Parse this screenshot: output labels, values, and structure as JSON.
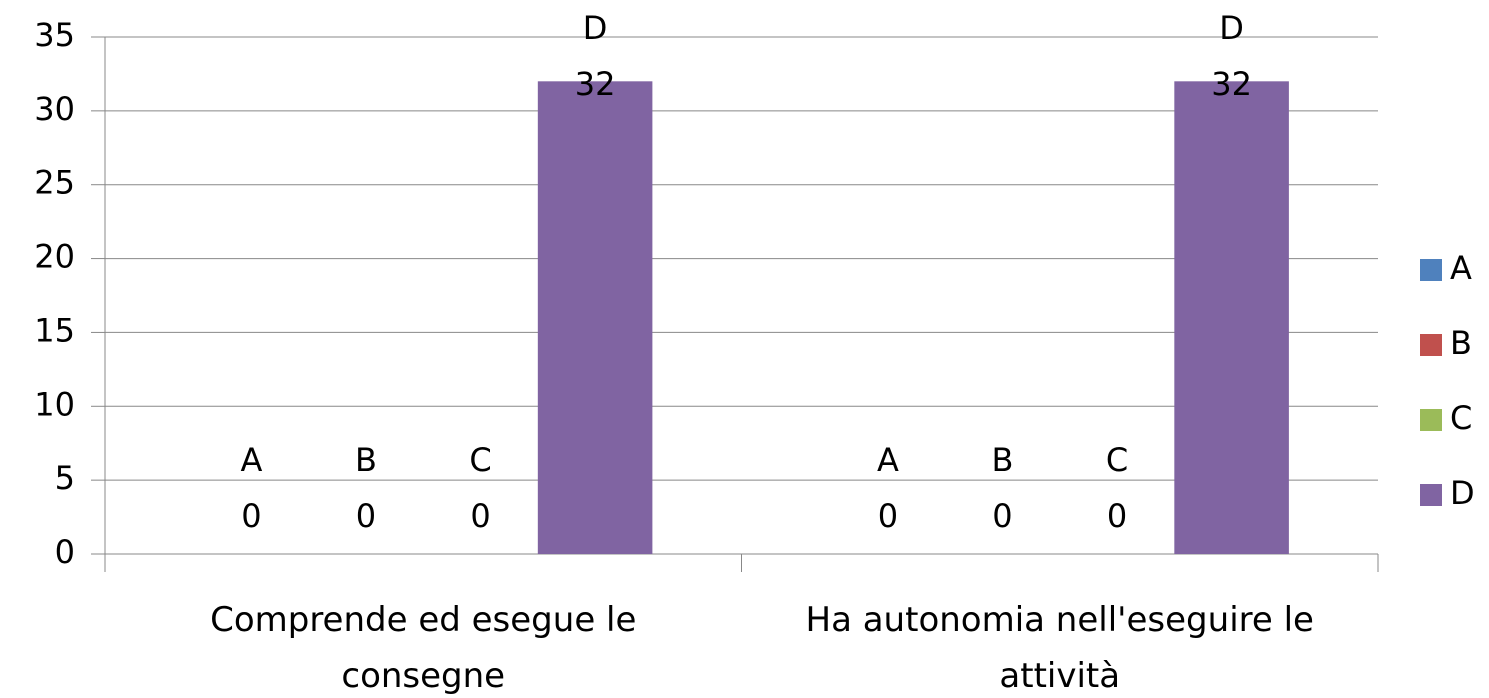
{
  "chart_data": {
    "type": "bar",
    "categories": [
      "Comprende ed esegue le consegne",
      "Ha autonomia nell'eseguire le attività"
    ],
    "series": [
      {
        "name": "A",
        "color": "#4f81bd",
        "values": [
          0,
          0
        ]
      },
      {
        "name": "B",
        "color": "#c0504d",
        "values": [
          0,
          0
        ]
      },
      {
        "name": "C",
        "color": "#9bbb59",
        "values": [
          0,
          0
        ]
      },
      {
        "name": "D",
        "color": "#8064a2",
        "values": [
          32,
          32
        ]
      }
    ],
    "ylim": [
      0,
      35
    ],
    "yticks": [
      0,
      5,
      10,
      15,
      20,
      25,
      30,
      35
    ],
    "grid": true,
    "legend": "right"
  }
}
